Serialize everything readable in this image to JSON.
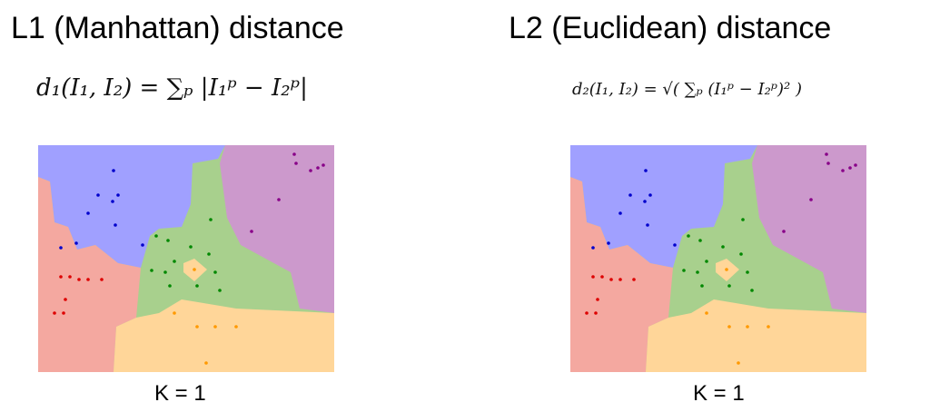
{
  "left": {
    "title": "L1 (Manhattan) distance",
    "formula": "d₁(I₁, I₂) = ∑ₚ |I₁ᵖ − I₂ᵖ|",
    "caption": "K = 1"
  },
  "right": {
    "title": "L2 (Euclidean) distance",
    "formula": "d₂(I₁, I₂) = √( ∑ₚ (I₁ᵖ − I₂ᵖ)² )",
    "caption": "K = 1"
  }
}
